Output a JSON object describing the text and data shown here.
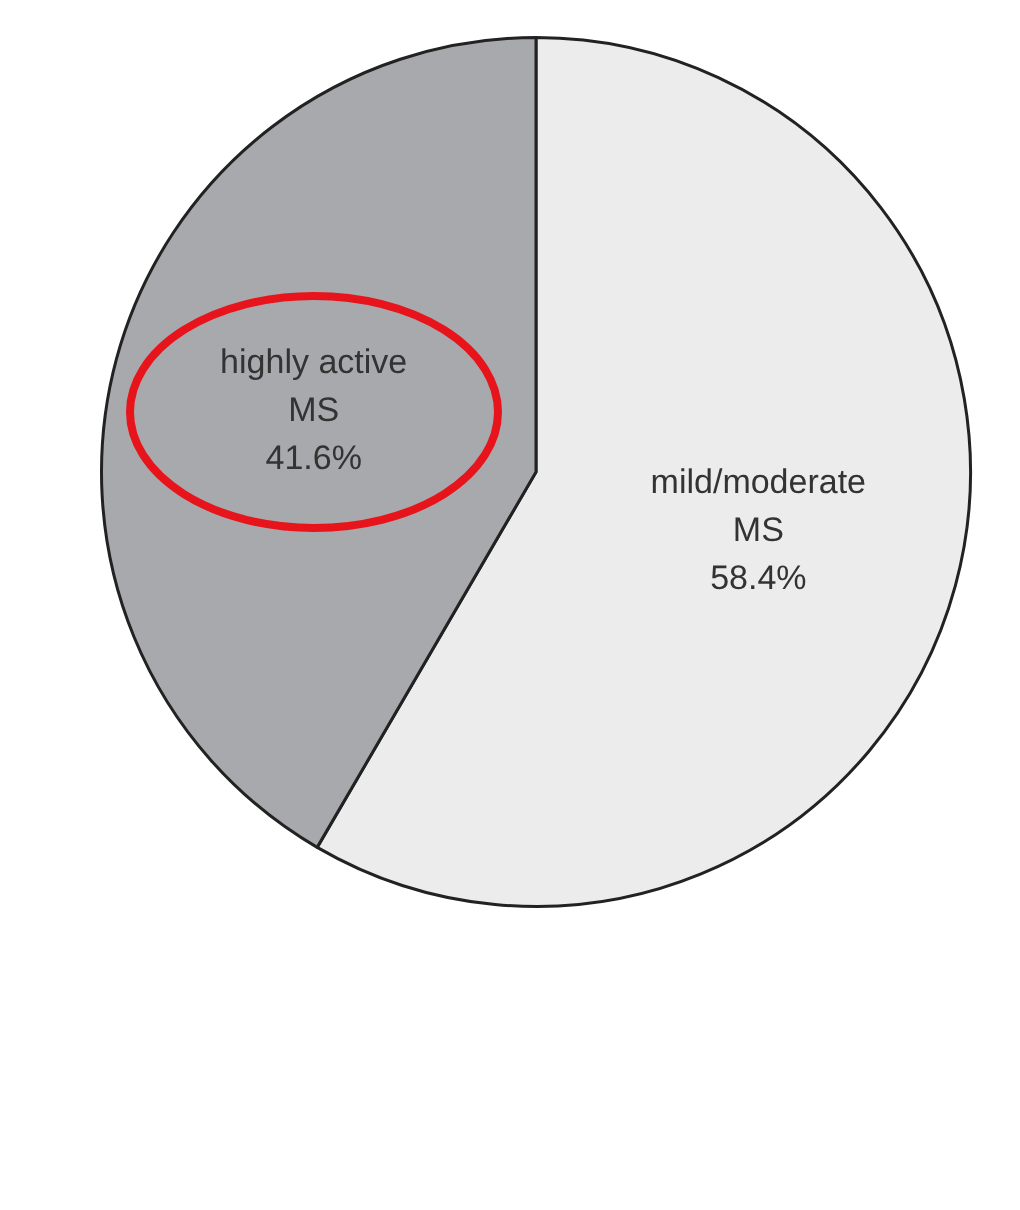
{
  "chart_data": {
    "type": "pie",
    "categories": [
      "mild/moderate MS",
      "highly active MS"
    ],
    "values": [
      58.4,
      41.6
    ],
    "colors": [
      "#ececec",
      "#a7a9ac"
    ],
    "value_labels": [
      "58.4%",
      "41.6%"
    ],
    "legend": false
  }
}
